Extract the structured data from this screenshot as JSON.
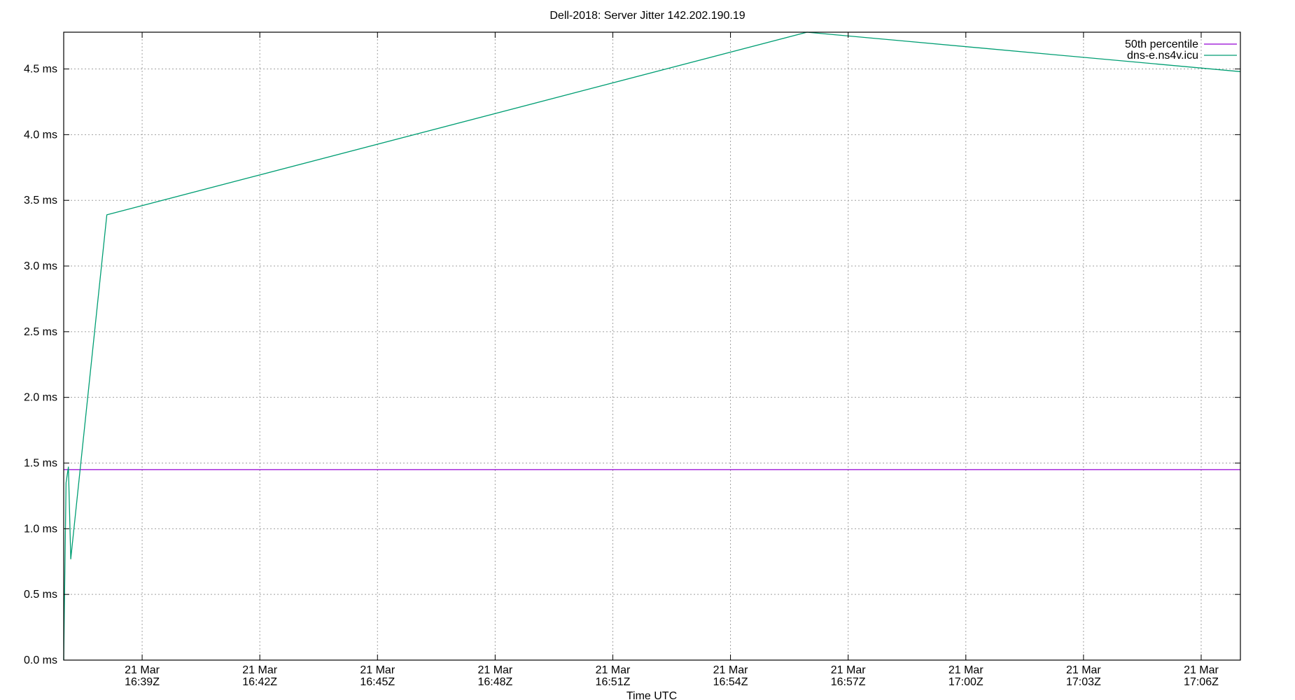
{
  "chart_data": {
    "type": "line",
    "title": "Dell-2018: Server Jitter 142.202.190.19",
    "xlabel": "Time UTC",
    "ylabel": "",
    "x_unit": "minutes after 16:37Z, 21 Mar",
    "xlim": [
      0,
      30
    ],
    "ylim": [
      0,
      4.78
    ],
    "y_ticks": [
      0.0,
      0.5,
      1.0,
      1.5,
      2.0,
      2.5,
      3.0,
      3.5,
      4.0,
      4.5
    ],
    "y_tick_labels": [
      "0.0 ms",
      "0.5 ms",
      "1.0 ms",
      "1.5 ms",
      "2.0 ms",
      "2.5 ms",
      "3.0 ms",
      "3.5 ms",
      "4.0 ms",
      "4.5 ms"
    ],
    "x_ticks": [
      {
        "x": 2,
        "date": "21 Mar",
        "time": "16:39Z"
      },
      {
        "x": 5,
        "date": "21 Mar",
        "time": "16:42Z"
      },
      {
        "x": 8,
        "date": "21 Mar",
        "time": "16:45Z"
      },
      {
        "x": 11,
        "date": "21 Mar",
        "time": "16:48Z"
      },
      {
        "x": 14,
        "date": "21 Mar",
        "time": "16:51Z"
      },
      {
        "x": 17,
        "date": "21 Mar",
        "time": "16:54Z"
      },
      {
        "x": 20,
        "date": "21 Mar",
        "time": "16:57Z"
      },
      {
        "x": 23,
        "date": "21 Mar",
        "time": "17:00Z"
      },
      {
        "x": 26,
        "date": "21 Mar",
        "time": "17:03Z"
      },
      {
        "x": 29,
        "date": "21 Mar",
        "time": "17:06Z"
      }
    ],
    "grid": true,
    "legend_position": "top-right",
    "series": [
      {
        "name": "50th percentile",
        "color": "#9400d3",
        "x": [
          0,
          30
        ],
        "y": [
          1.45,
          1.45
        ]
      },
      {
        "name": "dns-e.ns4v.icu",
        "color": "#009e73",
        "x": [
          0,
          0.06,
          0.12,
          0.18,
          1.1,
          18.95,
          30
        ],
        "y": [
          0.0,
          1.35,
          1.47,
          0.77,
          3.39,
          4.78,
          4.48
        ]
      }
    ]
  }
}
